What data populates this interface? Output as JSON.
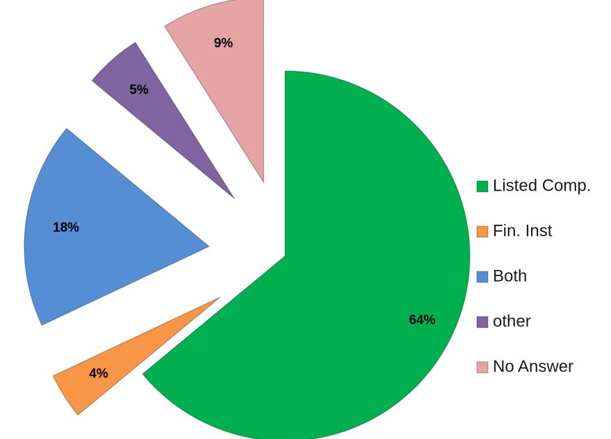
{
  "chart_data": {
    "type": "pie",
    "categories": [
      "Listed Comp.",
      "Fin. Inst",
      "Both",
      "other",
      "No Answer"
    ],
    "values": [
      64,
      4,
      18,
      5,
      9
    ],
    "value_labels": [
      "64%",
      "4%",
      "18%",
      "5%",
      "9%"
    ],
    "colors": [
      "#00b050",
      "#f79646",
      "#558ed5",
      "#8064a2",
      "#e6a3a3"
    ],
    "legend": "right"
  }
}
